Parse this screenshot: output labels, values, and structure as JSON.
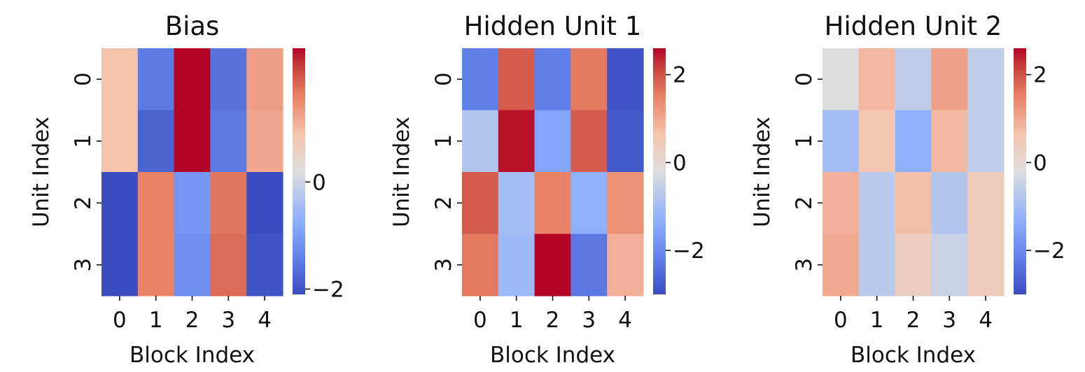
{
  "chart_data": [
    {
      "type": "heatmap",
      "title": "Bias",
      "xlabel": "Block Index",
      "ylabel": "Unit Index",
      "x_ticks": [
        "0",
        "1",
        "2",
        "3",
        "4"
      ],
      "y_ticks": [
        "0",
        "1",
        "2",
        "3"
      ],
      "values": [
        [
          0.9,
          -1.5,
          2.5,
          -1.6,
          1.3
        ],
        [
          0.9,
          -1.8,
          2.6,
          -1.5,
          1.2
        ],
        [
          -2.2,
          1.6,
          -1.1,
          1.7,
          -2.3
        ],
        [
          -2.4,
          1.6,
          -1.2,
          1.8,
          -2.0
        ]
      ],
      "colorbar": {
        "min": -2.1,
        "max": 2.5,
        "ticks": [
          -2,
          0
        ],
        "tick_labels": [
          "−2",
          "0"
        ]
      },
      "colormap": "coolwarm"
    },
    {
      "type": "heatmap",
      "title": "Hidden Unit 1",
      "xlabel": "Block Index",
      "ylabel": "Unit Index",
      "x_ticks": [
        "0",
        "1",
        "2",
        "3",
        "4"
      ],
      "y_ticks": [
        "0",
        "1",
        "2",
        "3"
      ],
      "values": [
        [
          -2.2,
          1.9,
          -2.2,
          1.6,
          -2.9
        ],
        [
          -0.8,
          2.5,
          -1.5,
          1.9,
          -2.8
        ],
        [
          1.9,
          -1.0,
          1.5,
          -1.3,
          1.3
        ],
        [
          1.6,
          -1.1,
          2.6,
          -2.3,
          0.9
        ]
      ],
      "colorbar": {
        "min": -3.0,
        "max": 2.6,
        "ticks": [
          -2,
          0,
          2
        ],
        "tick_labels": [
          "−2",
          "0",
          "2"
        ]
      },
      "colormap": "coolwarm"
    },
    {
      "type": "heatmap",
      "title": "Hidden Unit 2",
      "xlabel": "Block Index",
      "ylabel": "Unit Index",
      "x_ticks": [
        "0",
        "1",
        "2",
        "3",
        "4"
      ],
      "y_ticks": [
        "0",
        "1",
        "2",
        "3"
      ],
      "values": [
        [
          -0.2,
          0.8,
          -0.6,
          1.1,
          -0.6
        ],
        [
          -1.0,
          0.6,
          -1.3,
          0.8,
          -0.6
        ],
        [
          0.9,
          -0.7,
          0.7,
          -0.8,
          0.4
        ],
        [
          1.0,
          -0.7,
          0.3,
          -0.5,
          0.4
        ]
      ],
      "colorbar": {
        "min": -3.0,
        "max": 2.6,
        "ticks": [
          -2,
          0,
          2
        ],
        "tick_labels": [
          "−2",
          "0",
          "2"
        ]
      },
      "colormap": "coolwarm"
    }
  ]
}
